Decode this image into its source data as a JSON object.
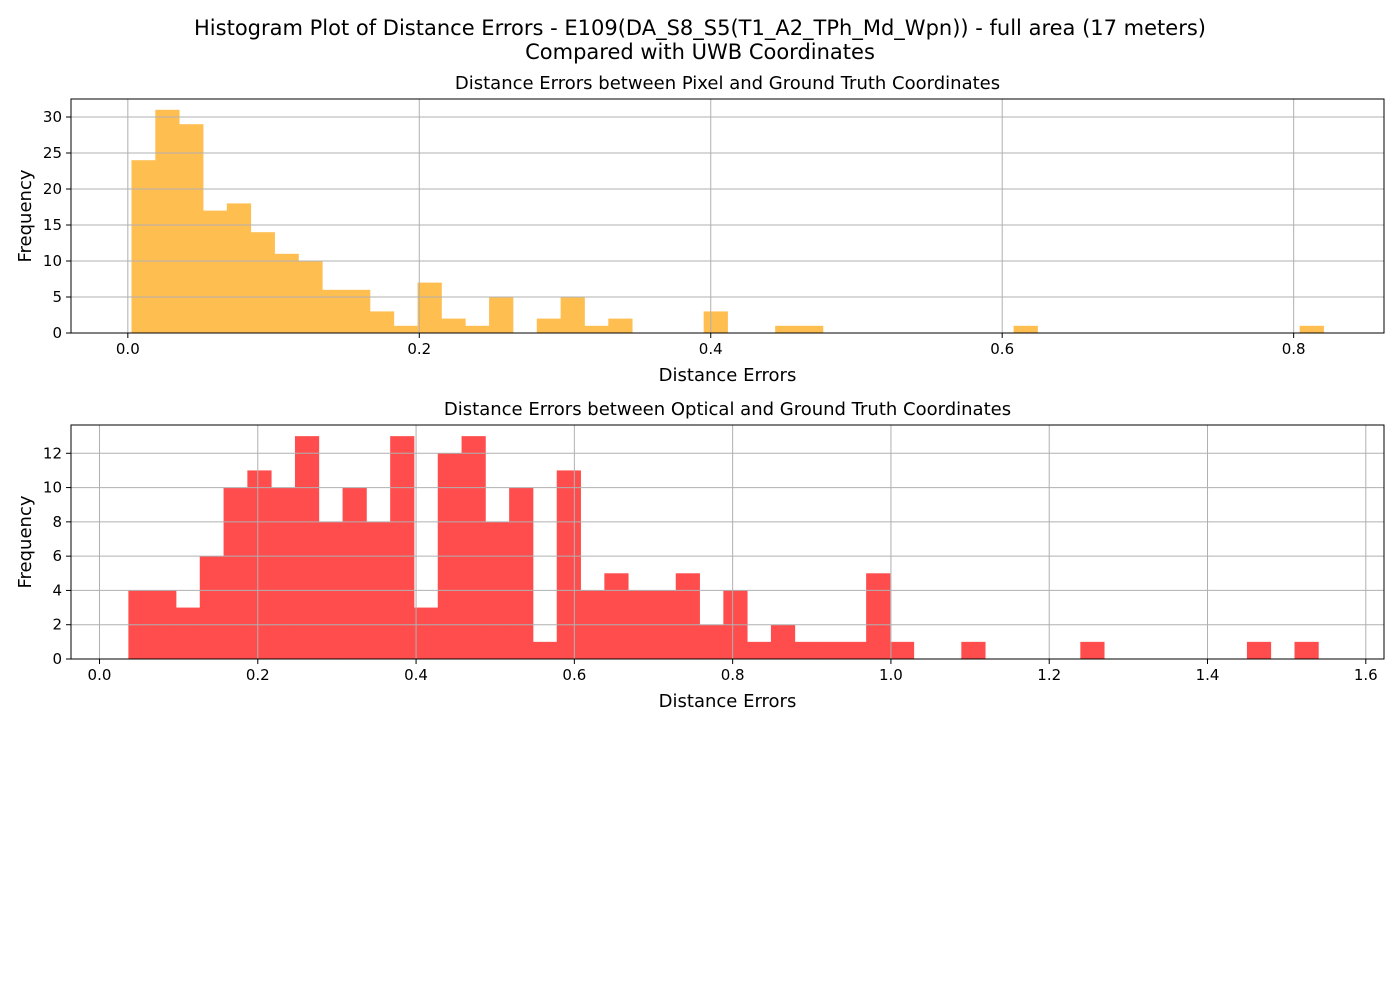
{
  "figure": {
    "title_line1": "Histogram Plot of Distance Errors - E109(DA_S8_S5(T1_A2_TPh_Md_Wpn)) - full area (17 meters)",
    "title_line2": "Compared with UWB Coordinates"
  },
  "chart_data": [
    {
      "type": "bar",
      "title": "Distance Errors between Pixel and Ground Truth Coordinates",
      "xlabel": "Distance Errors",
      "ylabel": "Frequency",
      "color": "#ffbe50",
      "grid": true,
      "xlim": [
        -0.039,
        0.862
      ],
      "ylim": [
        0,
        32.5
      ],
      "xticks": [
        0.0,
        0.2,
        0.4,
        0.6,
        0.8
      ],
      "xtick_labels": [
        "0.0",
        "0.2",
        "0.4",
        "0.6",
        "0.8"
      ],
      "yticks": [
        0,
        5,
        10,
        15,
        20,
        25,
        30
      ],
      "ytick_labels": [
        "0",
        "5",
        "10",
        "15",
        "20",
        "25",
        "30"
      ],
      "bin_start": 0.0025,
      "bin_width": 0.01636,
      "values": [
        24,
        31,
        29,
        17,
        18,
        14,
        11,
        10,
        6,
        6,
        3,
        1,
        7,
        2,
        1,
        5,
        0,
        2,
        5,
        1,
        2,
        0,
        0,
        0,
        3,
        0,
        0,
        1,
        1,
        0,
        0,
        0,
        0,
        0,
        0,
        0,
        0,
        1,
        0,
        0,
        0,
        0,
        0,
        0,
        0,
        0,
        0,
        0,
        0,
        1
      ]
    },
    {
      "type": "bar",
      "title": "Distance Errors between Optical and Ground Truth Coordinates",
      "xlabel": "Distance Errors",
      "ylabel": "Frequency",
      "color": "#ff4d4d",
      "grid": true,
      "xlim": [
        -0.036,
        1.623
      ],
      "ylim": [
        0,
        13.65
      ],
      "xticks": [
        0.0,
        0.2,
        0.4,
        0.6,
        0.8,
        1.0,
        1.2,
        1.4,
        1.6
      ],
      "xtick_labels": [
        "0.0",
        "0.2",
        "0.4",
        "0.6",
        "0.8",
        "1.0",
        "1.2",
        "1.4",
        "1.6"
      ],
      "yticks": [
        0,
        2,
        4,
        6,
        8,
        10,
        12
      ],
      "ytick_labels": [
        "0",
        "2",
        "4",
        "6",
        "8",
        "10",
        "12"
      ],
      "bin_start": 0.0365,
      "bin_width": 0.03007,
      "values": [
        4,
        4,
        3,
        6,
        10,
        11,
        10,
        13,
        8,
        10,
        8,
        13,
        3,
        12,
        13,
        8,
        10,
        1,
        11,
        4,
        5,
        4,
        4,
        5,
        2,
        4,
        1,
        2,
        1,
        1,
        1,
        5,
        1,
        0,
        0,
        1,
        0,
        0,
        0,
        0,
        1,
        0,
        0,
        0,
        0,
        0,
        0,
        1,
        0,
        1
      ]
    }
  ]
}
